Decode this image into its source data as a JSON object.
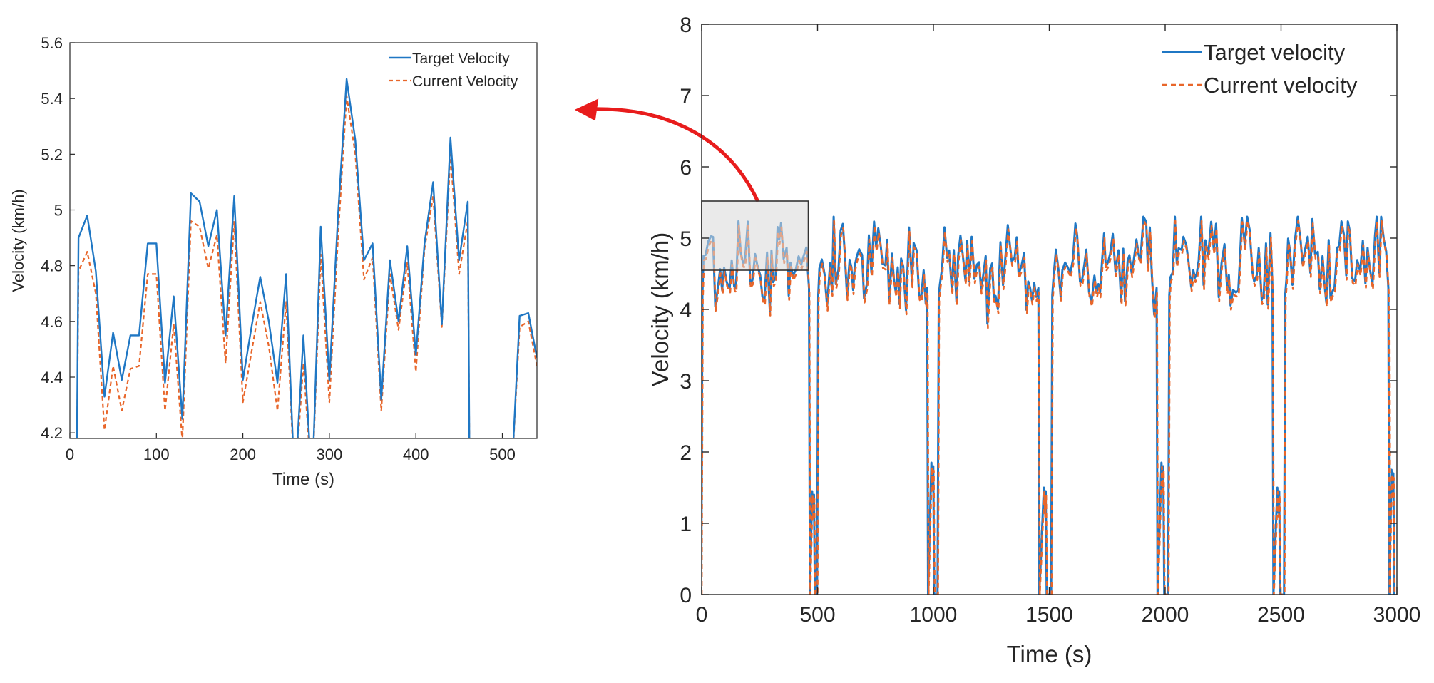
{
  "colors": {
    "target": "#1f77c4",
    "current": "#e8662a",
    "axis": "#262626",
    "arrow": "#e81c1c",
    "zoom_fill": "#d9d9d9"
  },
  "chart_data": [
    {
      "id": "zoom",
      "type": "line",
      "title": "",
      "xlabel": "Time (s)",
      "ylabel": "Velocity (km/h)",
      "xlim": [
        0,
        540
      ],
      "ylim": [
        4.18,
        5.6
      ],
      "xticks": [
        0,
        100,
        200,
        300,
        400,
        500
      ],
      "yticks": [
        4.2,
        4.4,
        4.6,
        4.8,
        5,
        5.2,
        5.4,
        5.6
      ],
      "ytick_labels": [
        "4.2",
        "4.4",
        "4.6",
        "4.8",
        "5",
        "5.2",
        "5.4",
        "5.6"
      ],
      "legend": {
        "placement": "top-right",
        "entries": [
          "Target Velocity",
          "Current Velocity"
        ]
      },
      "series": [
        {
          "name": "Target Velocity",
          "style": "solid",
          "x": [
            8,
            10,
            20,
            30,
            40,
            50,
            60,
            70,
            80,
            90,
            100,
            110,
            120,
            130,
            140,
            150,
            160,
            170,
            180,
            190,
            200,
            210,
            220,
            230,
            240,
            250,
            260,
            270,
            280,
            290,
            300,
            310,
            320,
            330,
            340,
            350,
            360,
            370,
            380,
            390,
            400,
            410,
            420,
            430,
            440,
            450,
            460,
            462
          ],
          "y": [
            4.1,
            4.9,
            4.98,
            4.78,
            4.33,
            4.56,
            4.39,
            4.55,
            4.55,
            4.88,
            4.88,
            4.38,
            4.69,
            4.25,
            5.06,
            5.03,
            4.87,
            5.0,
            4.55,
            5.05,
            4.39,
            4.58,
            4.76,
            4.6,
            4.38,
            4.77,
            4.0,
            4.55,
            4.0,
            4.94,
            4.39,
            4.98,
            5.47,
            5.25,
            4.82,
            4.88,
            4.32,
            4.82,
            4.6,
            4.87,
            4.48,
            4.88,
            5.1,
            4.59,
            5.26,
            4.82,
            5.03,
            4.1
          ]
        },
        {
          "name": "Target Velocity",
          "style": "solid",
          "x": [
            510,
            520,
            530,
            540
          ],
          "y": [
            4.0,
            4.62,
            4.63,
            4.47
          ]
        },
        {
          "name": "Current Velocity",
          "style": "dashed",
          "x": [
            8,
            10,
            20,
            30,
            40,
            50,
            60,
            70,
            80,
            90,
            100,
            110,
            120,
            130,
            140,
            150,
            160,
            170,
            180,
            190,
            200,
            210,
            220,
            230,
            240,
            250,
            260,
            270,
            280,
            290,
            300,
            310,
            320,
            330,
            340,
            350,
            360,
            370,
            380,
            390,
            400,
            410,
            420,
            430,
            440,
            450,
            460,
            462
          ],
          "y": [
            4.1,
            4.78,
            4.85,
            4.7,
            4.21,
            4.44,
            4.28,
            4.43,
            4.44,
            4.77,
            4.77,
            4.28,
            4.59,
            4.17,
            4.96,
            4.94,
            4.79,
            4.91,
            4.45,
            4.96,
            4.31,
            4.49,
            4.67,
            4.51,
            4.28,
            4.67,
            4.0,
            4.45,
            4.0,
            4.84,
            4.31,
            4.9,
            5.41,
            5.2,
            4.75,
            4.83,
            4.28,
            4.77,
            4.57,
            4.81,
            4.42,
            4.86,
            5.05,
            4.58,
            5.2,
            4.77,
            4.96,
            4.1
          ]
        },
        {
          "name": "Current Velocity",
          "style": "dashed",
          "x": [
            510,
            520,
            530,
            540
          ],
          "y": [
            4.0,
            4.58,
            4.6,
            4.44
          ]
        }
      ]
    },
    {
      "id": "main",
      "type": "line",
      "title": "",
      "xlabel": "Time (s)",
      "ylabel": "Velocity (km/h)",
      "xlim": [
        0,
        3000
      ],
      "ylim": [
        0,
        8
      ],
      "xticks": [
        0,
        500,
        1000,
        1500,
        2000,
        2500,
        3000
      ],
      "yticks": [
        0,
        1,
        2,
        3,
        4,
        5,
        6,
        7,
        8
      ],
      "legend": {
        "placement": "top-right",
        "entries": [
          "Target velocity",
          "Current velocity"
        ]
      },
      "zoom_box": {
        "x": [
          0,
          460
        ],
        "y": [
          4.55,
          5.52
        ]
      },
      "periods": [
        {
          "start": 0,
          "end": 465,
          "base": 4.7
        },
        {
          "start": 500,
          "end": 975,
          "base": 4.65
        },
        {
          "start": 1020,
          "end": 1455,
          "base": 4.6
        },
        {
          "start": 1510,
          "end": 1965,
          "base": 4.6
        },
        {
          "start": 2015,
          "end": 2465,
          "base": 4.7
        },
        {
          "start": 2515,
          "end": 2965,
          "base": 4.7
        }
      ],
      "dips": [
        {
          "t0": 465,
          "t1": 500,
          "peak": 1.45
        },
        {
          "t0": 975,
          "t1": 1020,
          "peak": 1.85
        },
        {
          "t0": 1455,
          "t1": 1510,
          "peak": 1.5
        },
        {
          "t0": 1965,
          "t1": 2015,
          "peak": 1.85
        },
        {
          "t0": 2465,
          "t1": 2515,
          "peak": 1.5
        },
        {
          "t0": 2965,
          "t1": 3000,
          "peak": 1.75
        }
      ]
    }
  ]
}
